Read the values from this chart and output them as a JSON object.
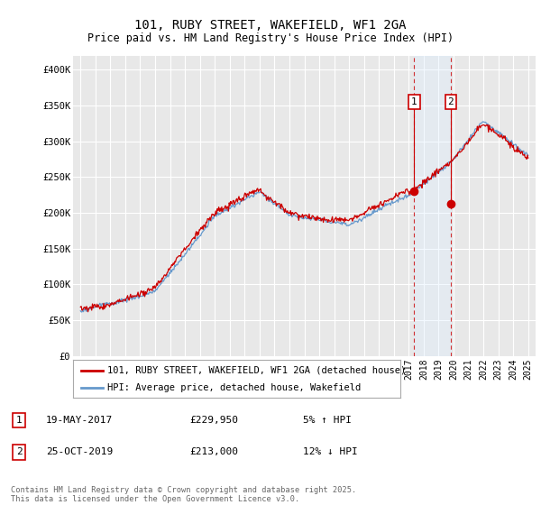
{
  "title": "101, RUBY STREET, WAKEFIELD, WF1 2GA",
  "subtitle": "Price paid vs. HM Land Registry's House Price Index (HPI)",
  "ylim": [
    0,
    420000
  ],
  "yticks": [
    0,
    50000,
    100000,
    150000,
    200000,
    250000,
    300000,
    350000,
    400000
  ],
  "ytick_labels": [
    "£0",
    "£50K",
    "£100K",
    "£150K",
    "£200K",
    "£250K",
    "£300K",
    "£350K",
    "£400K"
  ],
  "background_color": "#ffffff",
  "plot_bg_color": "#e8e8e8",
  "grid_color": "#ffffff",
  "hpi_color": "#6699cc",
  "price_color": "#cc0000",
  "dashed_color": "#cc0000",
  "span_color": "#ddeeff",
  "marker1_x": 2017.37,
  "marker2_x": 2019.81,
  "marker1_price": 229950,
  "marker2_price": 213000,
  "legend_line1": "101, RUBY STREET, WAKEFIELD, WF1 2GA (detached house)",
  "legend_line2": "HPI: Average price, detached house, Wakefield",
  "footnote": "Contains HM Land Registry data © Crown copyright and database right 2025.\nThis data is licensed under the Open Government Licence v3.0.",
  "title_fontsize": 10,
  "subtitle_fontsize": 8.5,
  "tick_fontsize": 7.5,
  "legend_fontsize": 7.5,
  "table_fontsize": 8
}
